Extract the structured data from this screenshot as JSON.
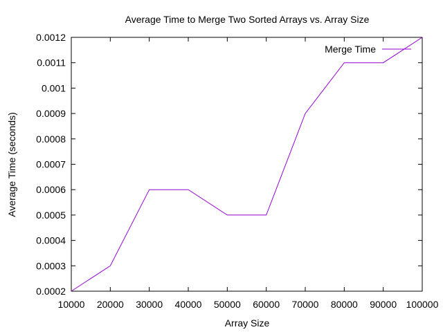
{
  "chart_data": {
    "type": "line",
    "title": "Average Time to Merge Two Sorted Arrays vs. Array Size",
    "xlabel": "Array Size",
    "ylabel": "Average Time (seconds)",
    "xlim": [
      10000,
      100000
    ],
    "ylim": [
      0.0002,
      0.0012
    ],
    "x_ticks": [
      10000,
      20000,
      30000,
      40000,
      50000,
      60000,
      70000,
      80000,
      90000,
      100000
    ],
    "y_ticks": [
      0.0002,
      0.0003,
      0.0004,
      0.0005,
      0.0006,
      0.0007,
      0.0008,
      0.0009,
      0.001,
      0.0011,
      0.0012
    ],
    "x_tick_labels": [
      "10000",
      "20000",
      "30000",
      "40000",
      "50000",
      "60000",
      "70000",
      "80000",
      "90000",
      "100000"
    ],
    "y_tick_labels": [
      "0.0002",
      "0.0003",
      "0.0004",
      "0.0005",
      "0.0006",
      "0.0007",
      "0.0008",
      "0.0009",
      "0.001",
      "0.0011",
      "0.0012"
    ],
    "grid": false,
    "legend_position": "top-right",
    "x": [
      10000,
      20000,
      30000,
      40000,
      50000,
      60000,
      70000,
      80000,
      90000,
      100000
    ],
    "series": [
      {
        "name": "Merge Time",
        "color": "#9400d3",
        "values": [
          0.0002,
          0.0003,
          0.0006,
          0.0006,
          0.0005,
          0.0005,
          0.0009,
          0.0011,
          0.0011,
          0.0012
        ]
      }
    ]
  }
}
